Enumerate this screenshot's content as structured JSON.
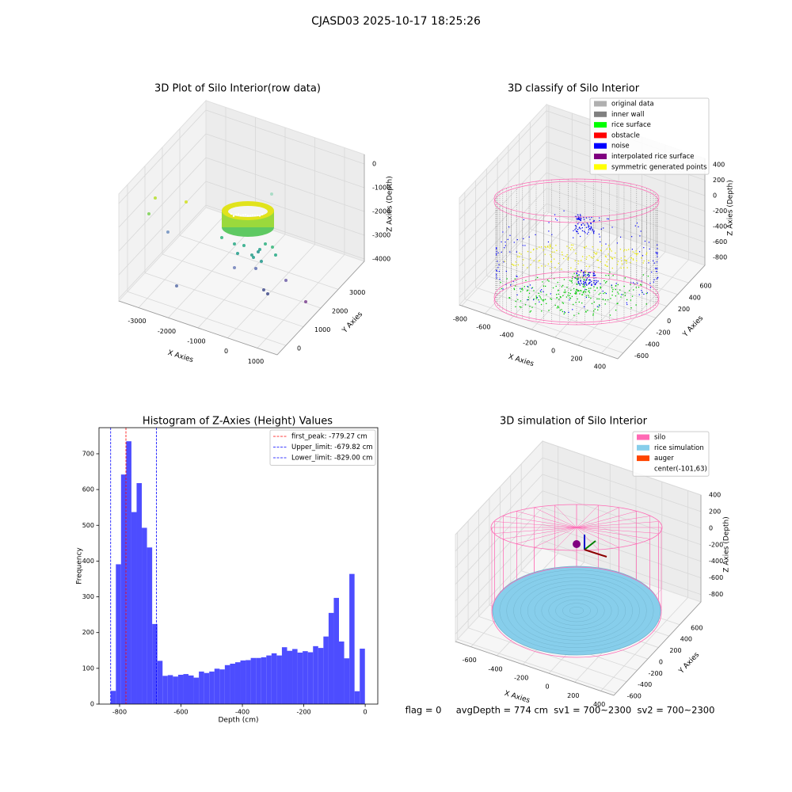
{
  "title": "CJASD03 2025-10-17 18:25:26",
  "footer": "flag = 0     avgDepth = 774 cm  sv1 = 700~2300  sv2 = 700~2300",
  "chart_data": [
    {
      "type": "scatter3d",
      "title": "3D Plot of Silo Interior(row data)",
      "xlabel": "X Axies",
      "ylabel": "Y Axies",
      "zlabel": "Z Axies (Depth)",
      "xlim": [
        -3667,
        1667
      ],
      "ylim": [
        -500,
        4500
      ],
      "zlim": [
        -4100,
        400
      ],
      "xticks": [
        -3000,
        -2000,
        -1000,
        0,
        1000
      ],
      "yticks": [
        0,
        1000,
        2000,
        3000
      ],
      "zticks": [
        -4000,
        -3000,
        -2000,
        -1000,
        0
      ]
    },
    {
      "type": "scatter3d",
      "title": "3D classify of Silo Interior",
      "xlabel": "X Axies",
      "ylabel": "Y Axies",
      "zlabel": "Z Axies (Depth)",
      "xlim": [
        -820,
        540
      ],
      "ylim": [
        -700,
        900
      ],
      "zlim": [
        -900,
        480
      ],
      "xticks": [
        -800,
        -600,
        -400,
        -200,
        0,
        200,
        400
      ],
      "yticks": [
        -600,
        -400,
        -200,
        0,
        200,
        400,
        600
      ],
      "zticks": [
        -800,
        -600,
        -400,
        -200,
        0,
        200,
        400
      ],
      "legend": [
        {
          "name": "original data",
          "color": "#b0b0b0"
        },
        {
          "name": "inner wall",
          "color": "#808080"
        },
        {
          "name": "rice surface",
          "color": "#00ff00"
        },
        {
          "name": "obstacle",
          "color": "#ff0000"
        },
        {
          "name": "noise",
          "color": "#0000ff"
        },
        {
          "name": "interpolated rice surface",
          "color": "#800080"
        },
        {
          "name": "symmetric generated points",
          "color": "#ffff00"
        }
      ]
    },
    {
      "type": "histogram",
      "title": "Histogram of Z-Axies (Height) Values",
      "xlabel": "Depth (cm)",
      "ylabel": "Frequency",
      "color": "#4d4dff",
      "bins": [
        -829,
        -812.1,
        -795.2,
        -778.3,
        -761.4,
        -744.5,
        -727.6,
        -710.7,
        -693.8,
        -676.9,
        -660,
        -643.1,
        -626.2,
        -609.3,
        -592.4,
        -575.5,
        -558.6,
        -541.7,
        -524.8,
        -507.9,
        -491,
        -474.1,
        -457.2,
        -440.3,
        -423.4,
        -406.5,
        -389.6,
        -372.7,
        -355.8,
        -338.9,
        -322,
        -305.1,
        -288.2,
        -271.3,
        -254.4,
        -237.5,
        -220.6,
        -203.7,
        -186.8,
        -169.9,
        -153,
        -136.1,
        -119.2,
        -102.3,
        -85.4,
        -68.5,
        -51.6,
        -34.7,
        -17.8,
        -0.9
      ],
      "values": [
        37,
        391,
        642,
        735,
        537,
        618,
        493,
        438,
        224,
        121,
        79,
        81,
        77,
        82,
        84,
        80,
        74,
        91,
        87,
        91,
        99,
        97,
        109,
        113,
        117,
        122,
        123,
        129,
        129,
        131,
        136,
        142,
        136,
        159,
        149,
        154,
        144,
        148,
        145,
        162,
        157,
        189,
        255,
        297,
        175,
        128,
        364,
        36,
        155
      ],
      "xlim": [
        -867,
        41
      ],
      "ylim": [
        0,
        773
      ],
      "xticks": [
        -800,
        -600,
        -400,
        -200,
        0
      ],
      "yticks": [
        0,
        100,
        200,
        300,
        400,
        500,
        600,
        700
      ],
      "lines": [
        {
          "label": "first_peak: -779.27 cm",
          "value": -779.27,
          "color": "#ff0000"
        },
        {
          "label": "Upper_limit: -679.82 cm",
          "value": -679.82,
          "color": "#0000ff"
        },
        {
          "label": "Lower_limit: -829.00 cm",
          "value": -829.0,
          "color": "#0000ff"
        }
      ],
      "legend_loc": "upper right"
    },
    {
      "type": "surface3d",
      "title": "3D simulation of Silo Interior",
      "xlabel": "X Axies",
      "ylabel": "Y Axies",
      "zlabel": "Z Axies (Depth)",
      "xlim": [
        -720,
        500
      ],
      "ylim": [
        -640,
        1000
      ],
      "zlim": [
        -890,
        400
      ],
      "xticks": [
        -600,
        -400,
        -200,
        0,
        200,
        400
      ],
      "yticks": [
        -600,
        -400,
        -200,
        0,
        200,
        400,
        600
      ],
      "zticks": [
        -800,
        -600,
        -400,
        -200,
        0,
        200,
        400
      ],
      "legend": [
        {
          "name": "silo",
          "color": "#ff69b4"
        },
        {
          "name": "rice simulation",
          "color": "#87ceeb"
        },
        {
          "name": "auger",
          "color": "#ff4500"
        },
        {
          "name": "center(-101,63)",
          "color": "#ffffff"
        }
      ]
    }
  ]
}
